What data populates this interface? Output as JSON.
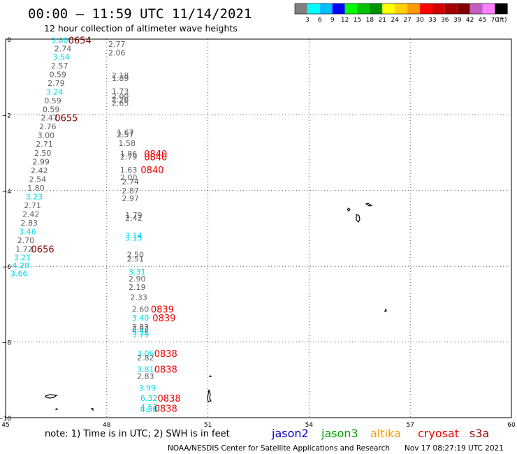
{
  "header": {
    "title": "00:00 – 11:59 UTC 11/14/2021",
    "subtitle": "12 hour collection of altimeter wave heights"
  },
  "colorbar": {
    "colors": [
      "#808080",
      "#00ffff",
      "#00bfff",
      "#0000ff",
      "#00ff00",
      "#00c000",
      "#009000",
      "#ffff00",
      "#ffd000",
      "#ff9900",
      "#ff0000",
      "#d00000",
      "#a00000",
      "#800000",
      "#c060c0",
      "#ff80ff",
      "#000000"
    ],
    "labels": [
      "3",
      "6",
      "9",
      "12",
      "15",
      "18",
      "21",
      "24",
      "27",
      "30",
      "33",
      "36",
      "39",
      "42",
      "45",
      "70"
    ],
    "unit": "(ft)"
  },
  "footer": {
    "note": "note:  1) Time is in UTC; 2) SWH is in feet",
    "credit": "NOAA/NESDIS Center for Satellite Applications and Research",
    "timestamp": "Nov 17 08:27:19 UTC 2021"
  },
  "legend": [
    {
      "name": "jason2",
      "color": "#0000cc"
    },
    {
      "name": "jason3",
      "color": "#00a000"
    },
    {
      "name": "altika",
      "color": "#ff9900"
    },
    {
      "name": "cryosat",
      "color": "#ee0000"
    },
    {
      "name": "s3a",
      "color": "#990000"
    }
  ],
  "chart_data": {
    "type": "scatter",
    "xlim": [
      45,
      60
    ],
    "ylim": [
      -10,
      0
    ],
    "xticks": [
      "45",
      "48",
      "51",
      "54",
      "57",
      "60"
    ],
    "yticks": [
      "0",
      "−2",
      "−4",
      "−6",
      "−8",
      "−10"
    ],
    "grid": true,
    "series_colors": {
      "gray": "#606060",
      "cyan": "#00d8e8",
      "red": "#ee0000",
      "darkred": "#800000"
    },
    "points": [
      {
        "x": 46.6,
        "y": -0.03,
        "t": "3.80",
        "c": "cyan"
      },
      {
        "x": 46.7,
        "y": -0.25,
        "t": "2.74",
        "c": "gray"
      },
      {
        "x": 46.65,
        "y": -0.47,
        "t": "3.54",
        "c": "cyan"
      },
      {
        "x": 46.6,
        "y": -0.7,
        "t": "2.57",
        "c": "gray"
      },
      {
        "x": 46.55,
        "y": -0.93,
        "t": "0.59",
        "c": "gray"
      },
      {
        "x": 46.5,
        "y": -1.16,
        "t": "2.79",
        "c": "gray"
      },
      {
        "x": 46.45,
        "y": -1.39,
        "t": "3.24",
        "c": "cyan"
      },
      {
        "x": 46.4,
        "y": -1.62,
        "t": "0.59",
        "c": "gray"
      },
      {
        "x": 46.35,
        "y": -1.85,
        "t": "0.59",
        "c": "gray"
      },
      {
        "x": 46.3,
        "y": -2.08,
        "t": "2.47",
        "c": "gray"
      },
      {
        "x": 46.25,
        "y": -2.31,
        "t": "2.76",
        "c": "gray"
      },
      {
        "x": 46.2,
        "y": -2.54,
        "t": "3.00",
        "c": "gray"
      },
      {
        "x": 46.15,
        "y": -2.77,
        "t": "2.71",
        "c": "gray"
      },
      {
        "x": 46.1,
        "y": -3.01,
        "t": "2.50",
        "c": "gray"
      },
      {
        "x": 46.05,
        "y": -3.24,
        "t": "2.99",
        "c": "gray"
      },
      {
        "x": 46.0,
        "y": -3.47,
        "t": "2.42",
        "c": "gray"
      },
      {
        "x": 45.95,
        "y": -3.7,
        "t": "2.54",
        "c": "gray"
      },
      {
        "x": 45.9,
        "y": -3.93,
        "t": "1.80",
        "c": "gray"
      },
      {
        "x": 45.85,
        "y": -4.16,
        "t": "3.23",
        "c": "cyan"
      },
      {
        "x": 45.8,
        "y": -4.39,
        "t": "2.71",
        "c": "gray"
      },
      {
        "x": 45.75,
        "y": -4.62,
        "t": "2.42",
        "c": "gray"
      },
      {
        "x": 45.7,
        "y": -4.85,
        "t": "2.83",
        "c": "gray"
      },
      {
        "x": 45.65,
        "y": -5.08,
        "t": "3.46",
        "c": "cyan"
      },
      {
        "x": 45.6,
        "y": -5.31,
        "t": "2.70",
        "c": "gray"
      },
      {
        "x": 45.55,
        "y": -5.54,
        "t": "1.72",
        "c": "gray"
      },
      {
        "x": 45.5,
        "y": -5.77,
        "t": "3.21",
        "c": "cyan"
      },
      {
        "x": 45.45,
        "y": -5.98,
        "t": "4.28",
        "c": "cyan"
      },
      {
        "x": 45.4,
        "y": -6.19,
        "t": "3.66",
        "c": "cyan"
      },
      {
        "x": 48.3,
        "y": -0.13,
        "t": "2.77",
        "c": "gray"
      },
      {
        "x": 48.3,
        "y": -0.36,
        "t": "2.06",
        "c": "gray"
      },
      {
        "x": 48.4,
        "y": -0.96,
        "t": "2.18",
        "c": "gray"
      },
      {
        "x": 48.4,
        "y": -1.03,
        "t": "1.89",
        "c": "gray"
      },
      {
        "x": 48.4,
        "y": -1.37,
        "t": "1.73",
        "c": "gray"
      },
      {
        "x": 48.4,
        "y": -1.51,
        "t": "2.00",
        "c": "gray"
      },
      {
        "x": 48.4,
        "y": -1.6,
        "t": "2.26",
        "c": "gray"
      },
      {
        "x": 48.4,
        "y": -1.69,
        "t": "2.65",
        "c": "gray"
      },
      {
        "x": 48.55,
        "y": -2.46,
        "t": "1.67",
        "c": "gray"
      },
      {
        "x": 48.55,
        "y": -2.52,
        "t": "2.57",
        "c": "gray"
      },
      {
        "x": 48.6,
        "y": -2.75,
        "t": "1.58",
        "c": "gray"
      },
      {
        "x": 48.65,
        "y": -3.03,
        "t": "1.86",
        "c": "gray"
      },
      {
        "x": 48.65,
        "y": -3.11,
        "t": "2.79",
        "c": "gray"
      },
      {
        "x": 48.65,
        "y": -3.45,
        "t": "1.63",
        "c": "gray"
      },
      {
        "x": 48.65,
        "y": -3.65,
        "t": "2.00",
        "c": "gray"
      },
      {
        "x": 48.7,
        "y": -3.76,
        "t": "2.74",
        "c": "gray"
      },
      {
        "x": 48.7,
        "y": -4.0,
        "t": "2.87",
        "c": "gray"
      },
      {
        "x": 48.7,
        "y": -4.21,
        "t": "2.97",
        "c": "gray"
      },
      {
        "x": 48.8,
        "y": -4.65,
        "t": "1.79",
        "c": "gray"
      },
      {
        "x": 48.8,
        "y": -4.72,
        "t": "2.42",
        "c": "gray"
      },
      {
        "x": 48.8,
        "y": -5.18,
        "t": "3.14",
        "c": "cyan"
      },
      {
        "x": 48.8,
        "y": -5.25,
        "t": "3.15",
        "c": "cyan"
      },
      {
        "x": 48.85,
        "y": -5.69,
        "t": "2.50",
        "c": "gray"
      },
      {
        "x": 48.85,
        "y": -5.8,
        "t": "2.51",
        "c": "gray"
      },
      {
        "x": 48.9,
        "y": -6.14,
        "t": "3.31",
        "c": "cyan"
      },
      {
        "x": 48.9,
        "y": -6.33,
        "t": "2.90",
        "c": "gray"
      },
      {
        "x": 48.9,
        "y": -6.55,
        "t": "2.19",
        "c": "gray"
      },
      {
        "x": 48.95,
        "y": -6.82,
        "t": "2.33",
        "c": "gray"
      },
      {
        "x": 49.0,
        "y": -7.13,
        "t": "2.60",
        "c": "gray"
      },
      {
        "x": 49.0,
        "y": -7.36,
        "t": "3.40",
        "c": "cyan"
      },
      {
        "x": 49.0,
        "y": -7.6,
        "t": "2.82",
        "c": "gray"
      },
      {
        "x": 49.0,
        "y": -7.66,
        "t": "2.52",
        "c": "gray"
      },
      {
        "x": 49.0,
        "y": -7.73,
        "t": "3.52",
        "c": "cyan"
      },
      {
        "x": 49.0,
        "y": -7.8,
        "t": "3.79",
        "c": "cyan"
      },
      {
        "x": 49.15,
        "y": -8.3,
        "t": "3.06",
        "c": "cyan"
      },
      {
        "x": 49.15,
        "y": -8.41,
        "t": "2.82",
        "c": "gray"
      },
      {
        "x": 49.15,
        "y": -8.72,
        "t": "3.81",
        "c": "cyan"
      },
      {
        "x": 49.15,
        "y": -8.9,
        "t": "2.83",
        "c": "gray"
      },
      {
        "x": 49.2,
        "y": -9.21,
        "t": "3.99",
        "c": "cyan"
      },
      {
        "x": 49.25,
        "y": -9.48,
        "t": "6.32",
        "c": "cyan"
      },
      {
        "x": 49.25,
        "y": -9.71,
        "t": "4.53",
        "c": "cyan"
      },
      {
        "x": 49.25,
        "y": -9.78,
        "t": "4.58",
        "c": "cyan"
      }
    ],
    "time_labels": [
      {
        "x": 47.2,
        "y": -0.03,
        "t": "0654",
        "c": "darkred"
      },
      {
        "x": 46.8,
        "y": -2.08,
        "t": "0655",
        "c": "darkred"
      },
      {
        "x": 46.1,
        "y": -5.54,
        "t": "0656",
        "c": "darkred"
      },
      {
        "x": 49.45,
        "y": -3.03,
        "t": "0840",
        "c": "red"
      },
      {
        "x": 49.45,
        "y": -3.11,
        "t": "0840",
        "c": "red"
      },
      {
        "x": 49.35,
        "y": -3.45,
        "t": "0840",
        "c": "red"
      },
      {
        "x": 49.65,
        "y": -7.13,
        "t": "0839",
        "c": "red"
      },
      {
        "x": 49.7,
        "y": -7.36,
        "t": "0839",
        "c": "red"
      },
      {
        "x": 49.75,
        "y": -8.3,
        "t": "0838",
        "c": "red"
      },
      {
        "x": 49.75,
        "y": -8.72,
        "t": "0838",
        "c": "red"
      },
      {
        "x": 49.85,
        "y": -9.48,
        "t": "0838",
        "c": "red"
      },
      {
        "x": 49.75,
        "y": -9.75,
        "t": "0838",
        "c": "red"
      }
    ]
  }
}
